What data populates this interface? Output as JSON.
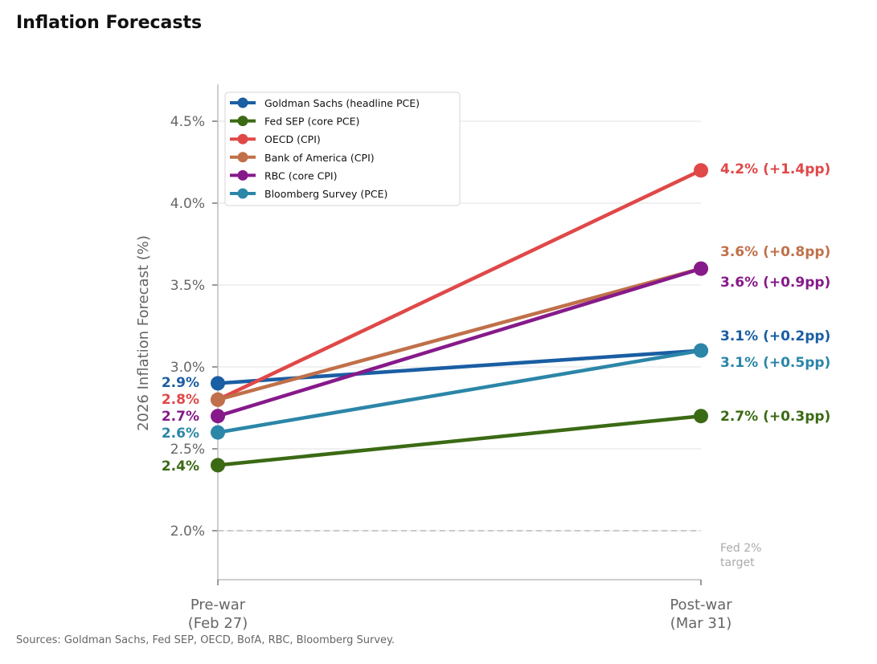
{
  "title": "Inflation Forecasts",
  "source": "Sources: Goldman Sachs, Fed SEP, OECD, BofA, RBC, Bloomberg Survey.",
  "chart_data": {
    "type": "line",
    "ylabel": "2026 Inflation Forecast (%)",
    "xlabel": "",
    "categories": [
      [
        "Pre-war",
        "(Feb 27)"
      ],
      [
        "Post-war",
        "(Mar 31)"
      ]
    ],
    "ylim": [
      1.7,
      4.7
    ],
    "yticks": [
      2.0,
      2.5,
      3.0,
      3.5,
      4.0,
      4.5
    ],
    "ytick_labels": [
      "2.0%",
      "2.5%",
      "3.0%",
      "3.5%",
      "4.0%",
      "4.5%"
    ],
    "grid": "horizontal",
    "legend_position": "top-left",
    "reference_line": {
      "value": 2.0,
      "label": [
        "Fed 2%",
        "target"
      ],
      "color": "#bbbbbb"
    },
    "series": [
      {
        "name": "Goldman Sachs (headline PCE)",
        "color": "#1a5ea3",
        "values": [
          2.9,
          3.1
        ],
        "start_label": "2.9%",
        "end_label": "3.1%  (+0.2pp)"
      },
      {
        "name": "Fed SEP (core PCE)",
        "color": "#3b6a14",
        "values": [
          2.4,
          2.7
        ],
        "start_label": "2.4%",
        "end_label": "2.7%  (+0.3pp)"
      },
      {
        "name": "OECD (CPI)",
        "color": "#e04848",
        "values": [
          2.8,
          4.2
        ],
        "start_label": "2.8%",
        "end_label": "4.2%  (+1.4pp)"
      },
      {
        "name": "Bank of America (CPI)",
        "color": "#c0704a",
        "values": [
          2.8,
          3.6
        ],
        "start_label": "",
        "end_label": "3.6%  (+0.8pp)"
      },
      {
        "name": "RBC (core CPI)",
        "color": "#861a8a",
        "values": [
          2.7,
          3.6
        ],
        "start_label": "2.7%",
        "end_label": "3.6%  (+0.9pp)"
      },
      {
        "name": "Bloomberg Survey (PCE)",
        "color": "#2b86a8",
        "values": [
          2.6,
          3.1
        ],
        "start_label": "2.6%",
        "end_label": "3.1%  (+0.5pp)"
      }
    ]
  }
}
